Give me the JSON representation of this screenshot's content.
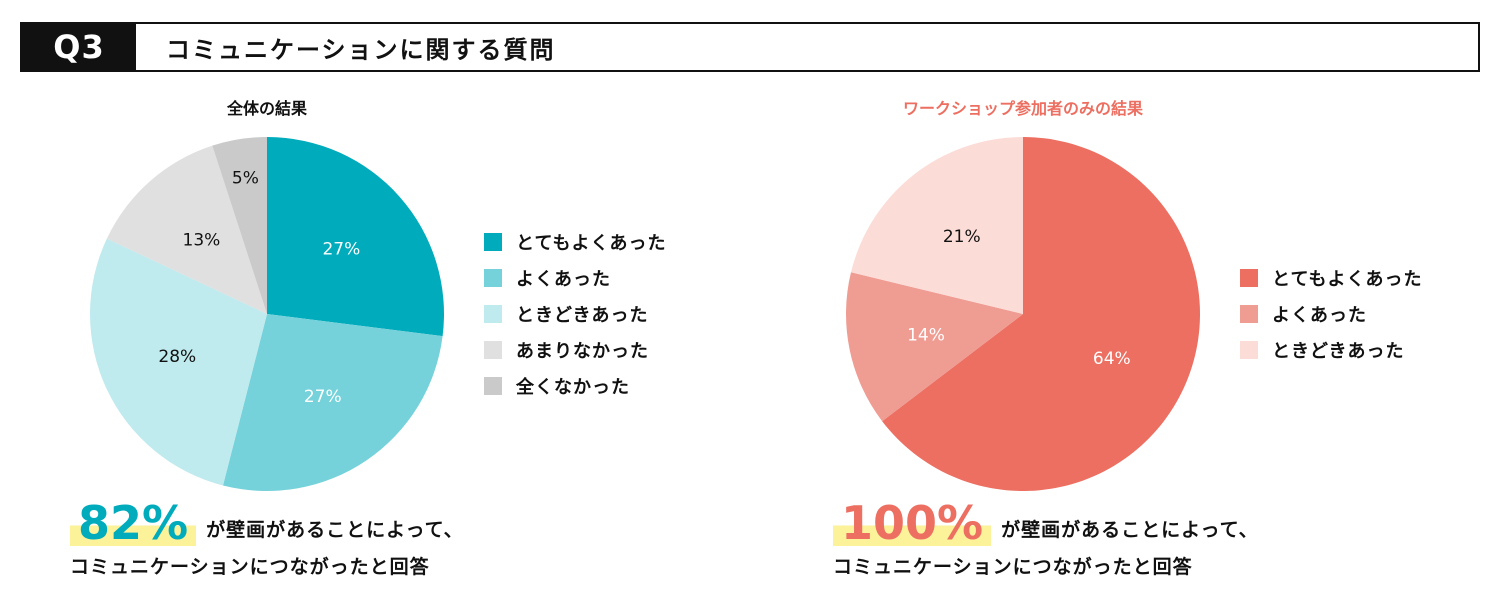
{
  "header": {
    "q_label": "Q3",
    "title": "コミュニケーションに関する質問"
  },
  "colors": {
    "left": [
      "#00abbc",
      "#75d2da",
      "#bfeaee",
      "#e0e0e0",
      "#cacaca"
    ],
    "right": [
      "#ec6f61",
      "#ef9c93",
      "#fcdcd7"
    ],
    "left_accent": "#00abbc",
    "right_accent": "#ec6f61",
    "right_title": "#ec6f61"
  },
  "chart_data": [
    {
      "type": "pie",
      "title": "全体の結果",
      "labels": [
        "とてもよくあった",
        "よくあった",
        "ときどきあった",
        "あまりなかった",
        "全くなかった"
      ],
      "values": [
        27,
        27,
        28,
        13,
        5
      ],
      "value_labels": [
        "27%",
        "27%",
        "28%",
        "13%",
        "5%"
      ],
      "legend_position": "right"
    },
    {
      "type": "pie",
      "title": "ワークショップ参加者のみの結果",
      "labels": [
        "とてもよくあった",
        "よくあった",
        "ときどきあった"
      ],
      "values": [
        64,
        14,
        21
      ],
      "value_labels": [
        "64%",
        "14%",
        "21%"
      ],
      "legend_position": "right"
    }
  ],
  "summary_left": {
    "percent": "82%",
    "text1": "が壁画があることによって、",
    "text2": "コミュニケーションにつながったと回答"
  },
  "summary_right": {
    "percent": "100%",
    "text1": "が壁画があることによって、",
    "text2": "コミュニケーションにつながったと回答"
  }
}
